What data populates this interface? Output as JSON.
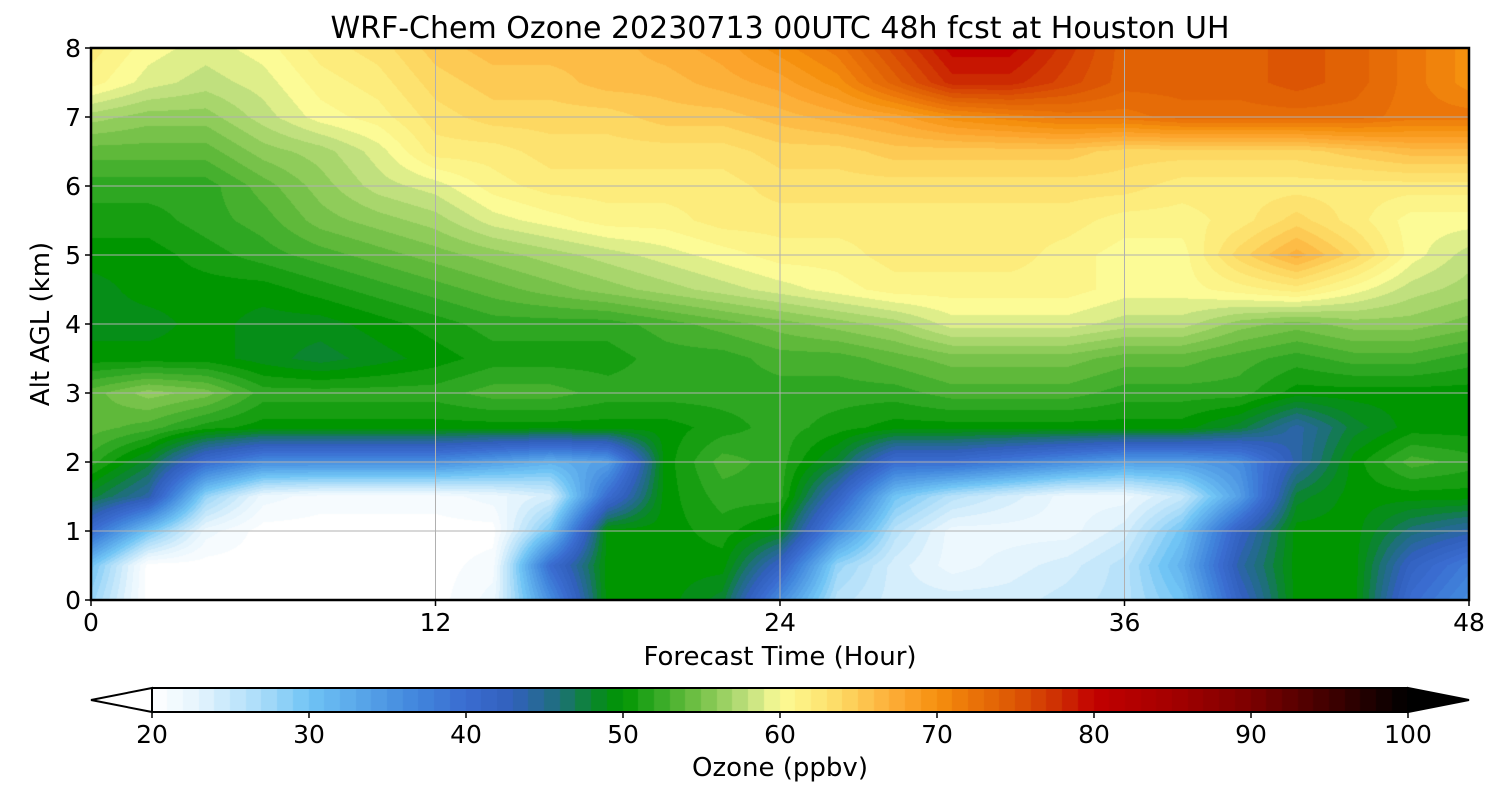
{
  "chart_data": {
    "type": "heatmap",
    "title": "WRF-Chem Ozone  20230713 00UTC 48h fcst at Houston UH",
    "xlabel": "Forecast Time (Hour)",
    "ylabel": "Alt AGL (km)",
    "xlim": [
      0,
      48
    ],
    "ylim": [
      0,
      8
    ],
    "x_ticks": [
      "0",
      "12",
      "24",
      "36",
      "48"
    ],
    "y_ticks": [
      "0",
      "1",
      "2",
      "3",
      "4",
      "5",
      "6",
      "7",
      "8"
    ],
    "grid": true,
    "x_hours": [
      0,
      2,
      4,
      6,
      8,
      10,
      12,
      14,
      16,
      18,
      20,
      22,
      24,
      26,
      28,
      30,
      32,
      34,
      36,
      38,
      40,
      42,
      44,
      46,
      48
    ],
    "y_km": [
      0,
      0.5,
      1,
      1.5,
      2,
      2.5,
      3,
      3.5,
      4,
      4.5,
      5,
      5.5,
      6,
      6.5,
      7,
      7.5,
      8
    ],
    "ozone_ppbv": [
      [
        28,
        20,
        20,
        20,
        20,
        20,
        20,
        22,
        36,
        50,
        50,
        48,
        36,
        26,
        24,
        24,
        24,
        25,
        26,
        30,
        42,
        50,
        50,
        40,
        36
      ],
      [
        30,
        20,
        20,
        20,
        20,
        20,
        20,
        21,
        40,
        50,
        50,
        50,
        42,
        28,
        24,
        22,
        23,
        24,
        26,
        32,
        44,
        50,
        50,
        42,
        38
      ],
      [
        40,
        30,
        22,
        20,
        20,
        20,
        20,
        20,
        30,
        50,
        50,
        51,
        49,
        36,
        26,
        22,
        22,
        22,
        24,
        30,
        42,
        50,
        50,
        46,
        44
      ],
      [
        48,
        44,
        28,
        22,
        21,
        21,
        21,
        22,
        24,
        40,
        50,
        52,
        52,
        42,
        30,
        26,
        24,
        22,
        22,
        25,
        34,
        48,
        50,
        50,
        50
      ],
      [
        52,
        48,
        40,
        36,
        36,
        36,
        36,
        34,
        32,
        34,
        50,
        53,
        52,
        48,
        40,
        40,
        38,
        36,
        34,
        34,
        36,
        44,
        50,
        53,
        52
      ],
      [
        54,
        53,
        51,
        50,
        50,
        50,
        50,
        50,
        50,
        50,
        50,
        51,
        52,
        51,
        50,
        50,
        50,
        50,
        50,
        50,
        48,
        44,
        48,
        50,
        50
      ],
      [
        54,
        56,
        55,
        52,
        52,
        52,
        52,
        53,
        53,
        52,
        52,
        52,
        52,
        52,
        52,
        53,
        53,
        53,
        52,
        52,
        52,
        50,
        50,
        50,
        50
      ],
      [
        50,
        50,
        50,
        49,
        48,
        49,
        50,
        51,
        51,
        51,
        52,
        52,
        53,
        53,
        54,
        55,
        55,
        55,
        54,
        54,
        53,
        52,
        53,
        53,
        52
      ],
      [
        49,
        49,
        50,
        49,
        49,
        50,
        51,
        52,
        52,
        52,
        53,
        54,
        55,
        56,
        57,
        59,
        59,
        59,
        58,
        58,
        56,
        55,
        56,
        56,
        55
      ],
      [
        49,
        50,
        50,
        50,
        51,
        52,
        53,
        54,
        55,
        56,
        57,
        58,
        59,
        60,
        61,
        61,
        61,
        61,
        60,
        60,
        61,
        62,
        60,
        58,
        57
      ],
      [
        50,
        50,
        51,
        52,
        53,
        54,
        55,
        56,
        57,
        58,
        59,
        60,
        61,
        61,
        62,
        62,
        62,
        61,
        60,
        60,
        64,
        67,
        64,
        60,
        58
      ],
      [
        51,
        51,
        52,
        53,
        55,
        56,
        57,
        59,
        60,
        61,
        61,
        62,
        62,
        62,
        62,
        62,
        62,
        62,
        61,
        61,
        62,
        64,
        62,
        60,
        60
      ],
      [
        52,
        52,
        52,
        54,
        56,
        58,
        59,
        61,
        62,
        62,
        62,
        62,
        63,
        63,
        63,
        63,
        63,
        63,
        63,
        62,
        62,
        62,
        62,
        62,
        62
      ],
      [
        54,
        54,
        54,
        56,
        57,
        59,
        62,
        62,
        63,
        63,
        63,
        63,
        64,
        64,
        65,
        65,
        65,
        65,
        64,
        64,
        64,
        64,
        65,
        66,
        66
      ],
      [
        57,
        56,
        56,
        58,
        60,
        61,
        63,
        64,
        64,
        64,
        65,
        65,
        66,
        67,
        68,
        70,
        71,
        72,
        72,
        73,
        73,
        73,
        73,
        72,
        72
      ],
      [
        61,
        59,
        58,
        59,
        61,
        62,
        64,
        65,
        65,
        66,
        66,
        67,
        68,
        70,
        74,
        78,
        78,
        76,
        74,
        74,
        74,
        75,
        74,
        72,
        70
      ],
      [
        62,
        60,
        59,
        60,
        62,
        63,
        65,
        66,
        66,
        66,
        67,
        68,
        70,
        72,
        76,
        80,
        80,
        77,
        74,
        74,
        74,
        75,
        74,
        72,
        70
      ]
    ],
    "colorbar": {
      "label": "Ozone  (ppbv)",
      "min": 20,
      "max": 100,
      "extend": "both",
      "ticks": [
        "20",
        "30",
        "40",
        "50",
        "60",
        "70",
        "80",
        "90",
        "100"
      ],
      "stops": [
        [
          20,
          "#ffffff"
        ],
        [
          23,
          "#e4f4fd"
        ],
        [
          27,
          "#a9dcf9"
        ],
        [
          30,
          "#70c4f5"
        ],
        [
          33,
          "#5aa8ea"
        ],
        [
          37,
          "#4185dc"
        ],
        [
          40,
          "#3a6cd0"
        ],
        [
          43,
          "#3160bc"
        ],
        [
          46,
          "#1e6f7a"
        ],
        [
          48,
          "#0b8530"
        ],
        [
          50,
          "#009600"
        ],
        [
          52,
          "#2ea722"
        ],
        [
          54,
          "#5fb93a"
        ],
        [
          56,
          "#8fcc5a"
        ],
        [
          58,
          "#c0e07e"
        ],
        [
          60,
          "#fcfb96"
        ],
        [
          62,
          "#fdec7c"
        ],
        [
          64,
          "#fdd862"
        ],
        [
          66,
          "#fdbc46"
        ],
        [
          68,
          "#fca42c"
        ],
        [
          70,
          "#f5900e"
        ],
        [
          72,
          "#ec7609"
        ],
        [
          74,
          "#e16205"
        ],
        [
          76,
          "#d84804"
        ],
        [
          78,
          "#cc2a02"
        ],
        [
          80,
          "#c20000"
        ],
        [
          85,
          "#a40000"
        ],
        [
          90,
          "#7c0000"
        ],
        [
          95,
          "#400000"
        ],
        [
          100,
          "#000000"
        ]
      ]
    }
  }
}
